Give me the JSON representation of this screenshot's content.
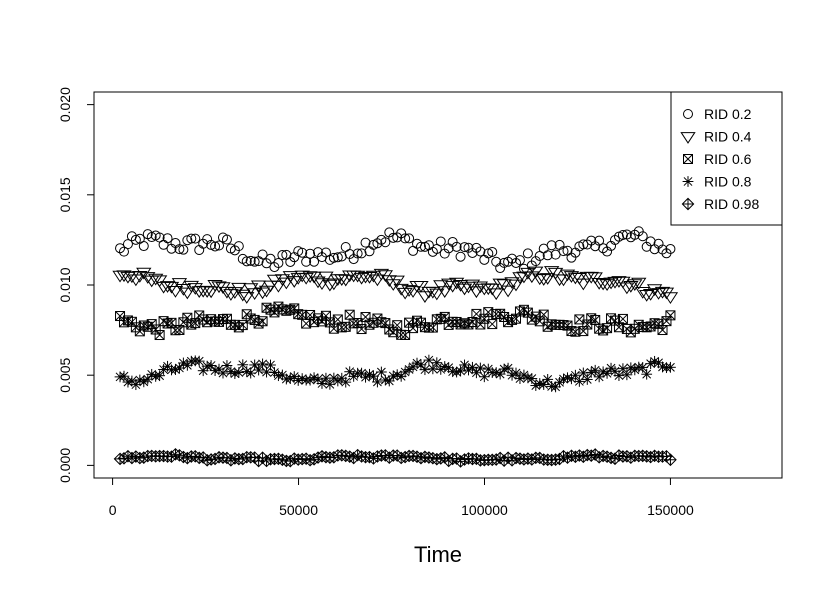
{
  "chart_data": {
    "type": "scatter",
    "title": "",
    "xlabel": "Time",
    "ylabel": "",
    "xlim": [
      -5000,
      180000
    ],
    "ylim": [
      -0.0007,
      0.0207
    ],
    "x_ticks": [
      0,
      50000,
      100000,
      150000
    ],
    "x_tick_labels": [
      "0",
      "50000",
      "100000",
      "150000"
    ],
    "y_ticks": [
      0.0,
      0.005,
      0.01,
      0.015,
      0.02
    ],
    "y_tick_labels": [
      "0.000",
      "0.005",
      "0.010",
      "0.015",
      "0.020"
    ],
    "grid": false,
    "legend_position": "top-right",
    "x_start": 2000,
    "x_end": 150000,
    "n_points": 140,
    "series": [
      {
        "name": "RID 0.2",
        "marker": "circle",
        "mean": 0.0119,
        "amp": 0.00055,
        "noise": 0.00045,
        "values_summary": "values between about 0.0108 and 0.0135"
      },
      {
        "name": "RID 0.4",
        "marker": "triangle-down",
        "mean": 0.0101,
        "amp": 0.0004,
        "noise": 0.0003,
        "values_summary": "values between about 0.0088 and 0.0106"
      },
      {
        "name": "RID 0.6",
        "marker": "boxed-x",
        "mean": 0.008,
        "amp": 0.0003,
        "noise": 0.0004,
        "values_summary": "values between about 0.0067 and 0.0094"
      },
      {
        "name": "RID 0.8",
        "marker": "asterisk",
        "mean": 0.0051,
        "amp": 0.0004,
        "noise": 0.0003,
        "values_summary": "values between about 0.0040 and 0.0061"
      },
      {
        "name": "RID 0.98",
        "marker": "diamond-plus",
        "mean": 0.0004,
        "amp": 0.0001,
        "noise": 0.0001,
        "values_summary": "values between about 0.0002 and 0.0007"
      }
    ]
  }
}
